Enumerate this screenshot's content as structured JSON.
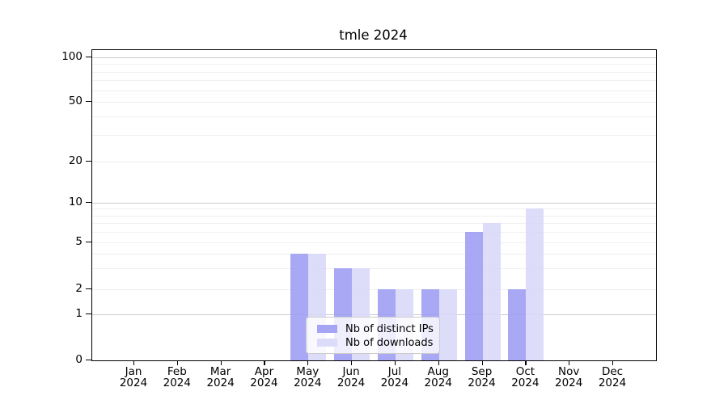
{
  "title": "tmle 2024",
  "chart_data": {
    "type": "bar",
    "title": "tmle 2024",
    "categories": [
      "Jan 2024",
      "Feb 2024",
      "Mar 2024",
      "Apr 2024",
      "May 2024",
      "Jun 2024",
      "Jul 2024",
      "Aug 2024",
      "Sep 2024",
      "Oct 2024",
      "Nov 2024",
      "Dec 2024"
    ],
    "x_tick_line1": [
      "Jan",
      "Feb",
      "Mar",
      "Apr",
      "May",
      "Jun",
      "Jul",
      "Aug",
      "Sep",
      "Oct",
      "Nov",
      "Dec"
    ],
    "x_tick_line2": "2024",
    "series": [
      {
        "name": "Nb of distinct IPs",
        "color": "#9b9bf3",
        "values": [
          0,
          0,
          0,
          0,
          4,
          3,
          2,
          2,
          6,
          2,
          0,
          0
        ]
      },
      {
        "name": "Nb of downloads",
        "color": "#d8d8f9",
        "values": [
          0,
          0,
          0,
          0,
          4,
          3,
          2,
          2,
          7,
          9,
          0,
          0
        ]
      }
    ],
    "y_ticks": [
      0,
      1,
      2,
      5,
      10,
      20,
      50,
      100
    ],
    "major_gridlines": [
      1,
      10,
      100
    ],
    "minor_gridlines": [
      2,
      3,
      4,
      5,
      6,
      7,
      8,
      9,
      20,
      30,
      40,
      50,
      60,
      70,
      80,
      90
    ],
    "ylim": [
      0,
      110
    ],
    "yscale": "log above 1, 0 pinned at baseline",
    "grid": true,
    "legend_position": "lower center, inside plot",
    "grid_colors": {
      "major": "#cccccc",
      "minor": "#f0f0f0"
    }
  }
}
